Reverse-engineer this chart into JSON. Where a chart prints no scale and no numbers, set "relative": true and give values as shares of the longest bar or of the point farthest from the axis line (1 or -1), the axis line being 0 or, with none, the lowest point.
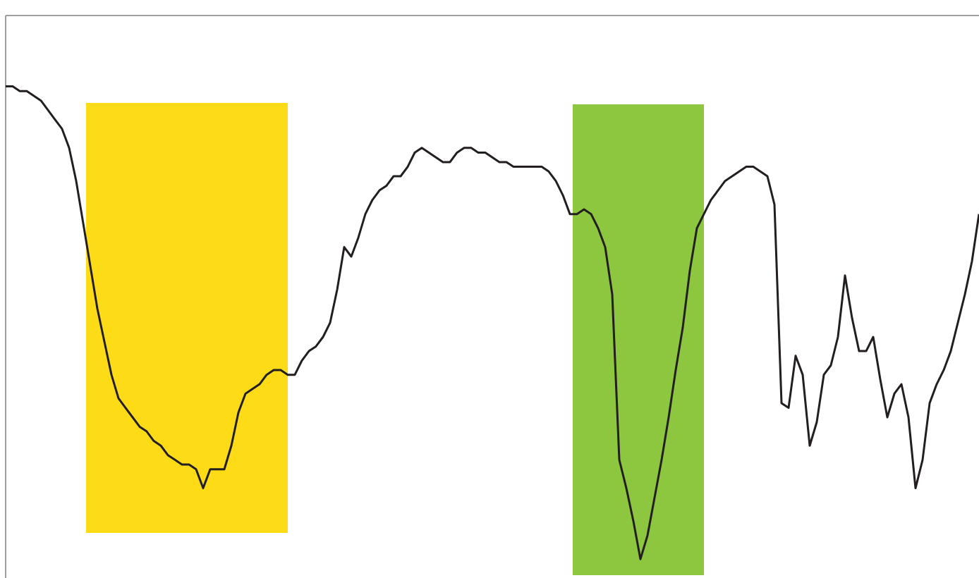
{
  "chart_data": {
    "type": "line",
    "relative": true,
    "color": "#231f20",
    "categories": [
      null,
      null,
      null,
      null,
      null,
      null,
      null,
      null,
      null,
      null,
      null,
      null,
      null,
      null,
      null,
      null,
      null,
      null,
      null,
      null,
      null,
      null,
      null,
      null,
      null,
      null,
      null,
      null,
      null,
      null,
      null,
      null,
      null,
      null,
      null,
      null,
      null,
      null,
      null,
      null,
      null,
      null,
      null,
      null,
      null,
      null,
      null,
      null,
      null,
      null,
      null,
      null,
      null,
      null,
      null,
      null,
      null,
      null,
      null,
      null,
      null,
      null,
      null,
      null,
      null,
      null,
      null,
      null,
      null,
      null,
      null,
      null,
      null,
      null,
      null,
      null,
      null,
      null,
      null,
      null,
      null,
      null,
      null,
      null,
      null,
      null,
      null,
      null,
      null,
      null,
      null,
      null,
      null,
      null,
      null,
      null,
      null,
      null,
      null,
      null,
      null,
      null,
      null,
      null,
      null,
      null,
      null,
      null,
      null,
      null,
      null,
      null,
      null,
      null,
      null,
      null,
      null,
      null,
      null,
      null,
      null,
      null,
      null,
      null,
      null,
      null,
      null,
      null,
      null,
      null,
      null,
      null,
      null,
      null,
      null,
      null,
      null,
      null,
      null
    ],
    "values": [
      1.0,
      1.0,
      0.99,
      0.99,
      0.98,
      0.97,
      0.95,
      0.93,
      0.91,
      0.87,
      0.8,
      0.71,
      0.62,
      0.53,
      0.46,
      0.39,
      0.34,
      0.32,
      0.3,
      0.28,
      0.27,
      0.25,
      0.24,
      0.22,
      0.21,
      0.2,
      0.2,
      0.19,
      0.15,
      0.19,
      0.19,
      0.19,
      0.24,
      0.31,
      0.35,
      0.36,
      0.37,
      0.39,
      0.4,
      0.4,
      0.39,
      0.39,
      0.42,
      0.44,
      0.45,
      0.47,
      0.5,
      0.57,
      0.66,
      0.64,
      0.68,
      0.73,
      0.76,
      0.78,
      0.79,
      0.81,
      0.81,
      0.83,
      0.86,
      0.87,
      0.86,
      0.85,
      0.84,
      0.84,
      0.86,
      0.87,
      0.87,
      0.86,
      0.86,
      0.85,
      0.84,
      0.84,
      0.83,
      0.83,
      0.83,
      0.83,
      0.83,
      0.82,
      0.8,
      0.77,
      0.73,
      0.73,
      0.74,
      0.73,
      0.7,
      0.66,
      0.56,
      0.21,
      0.15,
      0.08,
      0.0,
      0.05,
      0.13,
      0.21,
      0.3,
      0.4,
      0.49,
      0.61,
      0.7,
      0.73,
      0.76,
      0.78,
      0.8,
      0.81,
      0.82,
      0.83,
      0.83,
      0.82,
      0.81,
      0.75,
      0.33,
      0.32,
      0.43,
      0.39,
      0.24,
      0.29,
      0.39,
      0.41,
      0.47,
      0.6,
      0.51,
      0.44,
      0.44,
      0.47,
      0.38,
      0.3,
      0.35,
      0.37,
      0.3,
      0.15,
      0.21,
      0.33,
      0.37,
      0.4,
      0.44,
      0.5,
      0.56,
      0.63,
      0.73
    ]
  }
}
